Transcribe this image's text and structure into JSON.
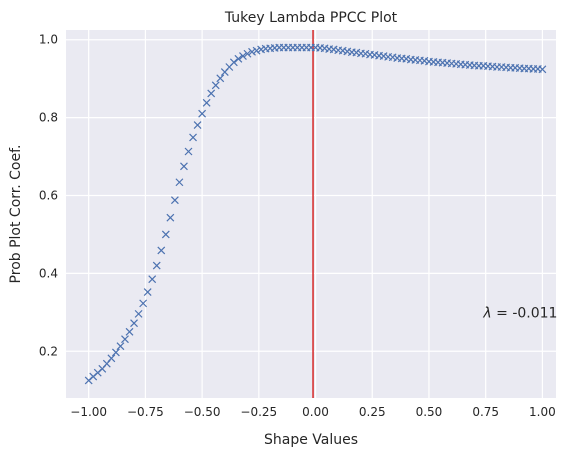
{
  "chart_data": {
    "type": "scatter",
    "title": "Tukey Lambda PPCC Plot",
    "xlabel": "Shape Values",
    "ylabel": "Prob Plot Corr. Coef.",
    "xlim": [
      -1.1,
      1.06
    ],
    "ylim": [
      0.08,
      1.025
    ],
    "xticks": [
      -1.0,
      -0.75,
      -0.5,
      -0.25,
      0.0,
      0.25,
      0.5,
      0.75,
      1.0
    ],
    "xtick_labels": [
      "−1.00",
      "−0.75",
      "−0.50",
      "−0.25",
      "0.00",
      "0.25",
      "0.50",
      "0.75",
      "1.00"
    ],
    "yticks": [
      0.2,
      0.4,
      0.6,
      0.8,
      1.0
    ],
    "ytick_labels": [
      "0.2",
      "0.4",
      "0.6",
      "0.8",
      "1.0"
    ],
    "grid": true,
    "marker": "x",
    "colors": {
      "background": "#eaeaf2",
      "grid": "#ffffff",
      "marker": "#4c72b0",
      "vline": "#d62728",
      "text": "#262626"
    },
    "series": [
      {
        "x": [
          -1.0,
          -0.98,
          -0.96,
          -0.94,
          -0.92,
          -0.9,
          -0.88,
          -0.86,
          -0.84,
          -0.82,
          -0.8,
          -0.78,
          -0.76,
          -0.74,
          -0.72,
          -0.7,
          -0.68,
          -0.66,
          -0.64,
          -0.62,
          -0.6,
          -0.58,
          -0.56,
          -0.54,
          -0.52,
          -0.5,
          -0.48,
          -0.46,
          -0.44,
          -0.42,
          -0.4,
          -0.38,
          -0.36,
          -0.34,
          -0.32,
          -0.3,
          -0.28,
          -0.26,
          -0.24,
          -0.22,
          -0.2,
          -0.18,
          -0.16,
          -0.14,
          -0.12,
          -0.1,
          -0.08,
          -0.06,
          -0.04,
          -0.02,
          0.0,
          0.02,
          0.04,
          0.06,
          0.08,
          0.1,
          0.12,
          0.14,
          0.16,
          0.18,
          0.2,
          0.22,
          0.24,
          0.26,
          0.28,
          0.3,
          0.32,
          0.34,
          0.36,
          0.38,
          0.4,
          0.42,
          0.44,
          0.46,
          0.48,
          0.5,
          0.52,
          0.54,
          0.56,
          0.58,
          0.6,
          0.62,
          0.64,
          0.66,
          0.68,
          0.7,
          0.72,
          0.74,
          0.76,
          0.78,
          0.8,
          0.82,
          0.84,
          0.86,
          0.88,
          0.9,
          0.92,
          0.94,
          0.96,
          0.98,
          1.0
        ],
        "y": [
          0.125,
          0.135,
          0.145,
          0.155,
          0.168,
          0.182,
          0.197,
          0.213,
          0.231,
          0.25,
          0.272,
          0.296,
          0.323,
          0.352,
          0.385,
          0.42,
          0.459,
          0.5,
          0.543,
          0.588,
          0.634,
          0.675,
          0.713,
          0.749,
          0.781,
          0.81,
          0.838,
          0.862,
          0.883,
          0.901,
          0.917,
          0.93,
          0.942,
          0.951,
          0.958,
          0.964,
          0.969,
          0.972,
          0.975,
          0.977,
          0.978,
          0.979,
          0.98,
          0.98,
          0.98,
          0.98,
          0.98,
          0.98,
          0.98,
          0.98,
          0.98,
          0.979,
          0.978,
          0.976,
          0.975,
          0.973,
          0.972,
          0.97,
          0.968,
          0.967,
          0.965,
          0.964,
          0.962,
          0.961,
          0.959,
          0.958,
          0.956,
          0.955,
          0.953,
          0.952,
          0.951,
          0.949,
          0.948,
          0.947,
          0.946,
          0.944,
          0.943,
          0.942,
          0.941,
          0.94,
          0.939,
          0.938,
          0.937,
          0.936,
          0.935,
          0.934,
          0.933,
          0.933,
          0.932,
          0.931,
          0.93,
          0.93,
          0.929,
          0.928,
          0.928,
          0.927,
          0.926,
          0.926,
          0.925,
          0.925,
          0.924
        ]
      }
    ],
    "vline_x": -0.011,
    "annotation": {
      "text": "λ = -0.011",
      "symbol": "λ",
      "value_text": " = -0.011",
      "x": 0.74,
      "y": 0.3
    }
  }
}
